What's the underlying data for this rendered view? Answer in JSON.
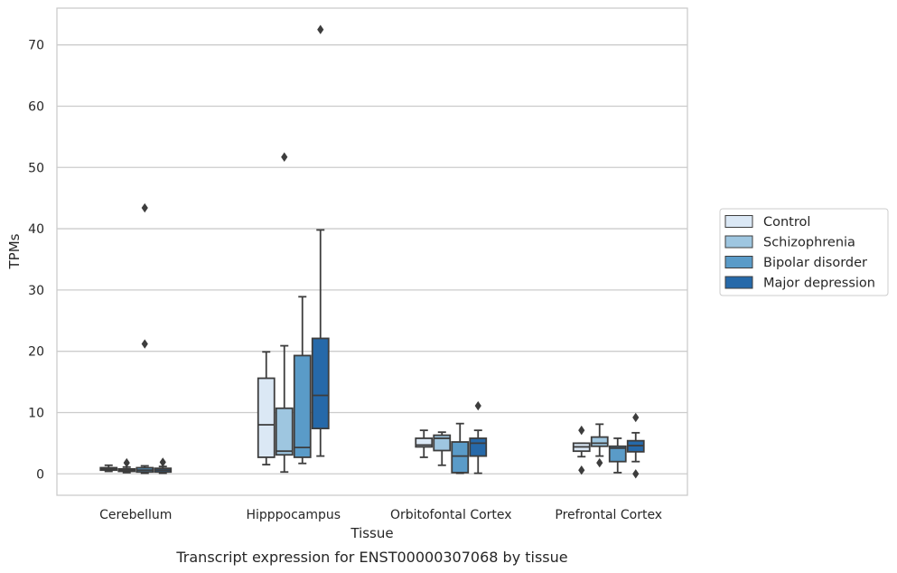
{
  "chart_data": {
    "type": "box",
    "title": "",
    "caption": "Transcript expression for ENST00000307068 by tissue",
    "xlabel": "Tissue",
    "ylabel": "TPMs",
    "ylim": [
      -3.5,
      76
    ],
    "yticks": [
      0,
      10,
      20,
      30,
      40,
      50,
      60,
      70
    ],
    "grid": "horizontal",
    "legend_position": "right",
    "categories": [
      "Cerebellum",
      "Hipppocampus",
      "Orbitofontal Cortex",
      "Prefrontal Cortex"
    ],
    "series": [
      {
        "name": "Control",
        "color": "#dbe8f5",
        "boxes": [
          {
            "whislo": 0.4,
            "q1": 0.6,
            "med": 0.8,
            "q3": 1.0,
            "whishi": 1.4,
            "fliers": []
          },
          {
            "whislo": 1.5,
            "q1": 2.7,
            "med": 8.0,
            "q3": 15.6,
            "whishi": 19.9,
            "fliers": []
          },
          {
            "whislo": 2.7,
            "q1": 4.4,
            "med": 4.7,
            "q3": 5.8,
            "whishi": 7.1,
            "fliers": []
          },
          {
            "whislo": 2.8,
            "q1": 3.7,
            "med": 4.4,
            "q3": 5.0,
            "whishi": 5.0,
            "fliers": [
              7.1,
              0.6
            ]
          }
        ]
      },
      {
        "name": "Schizophrenia",
        "color": "#9ec6e0",
        "boxes": [
          {
            "whislo": 0.2,
            "q1": 0.4,
            "med": 0.6,
            "q3": 0.8,
            "whishi": 1.1,
            "fliers": [
              1.8
            ]
          },
          {
            "whislo": 0.3,
            "q1": 3.1,
            "med": 3.7,
            "q3": 10.7,
            "whishi": 20.9,
            "fliers": [
              51.7
            ]
          },
          {
            "whislo": 1.4,
            "q1": 3.8,
            "med": 5.8,
            "q3": 6.3,
            "whishi": 6.8,
            "fliers": []
          },
          {
            "whislo": 2.9,
            "q1": 4.5,
            "med": 5.0,
            "q3": 6.0,
            "whishi": 8.1,
            "fliers": [
              1.8
            ]
          }
        ]
      },
      {
        "name": "Bipolar disorder",
        "color": "#5a9bc8",
        "boxes": [
          {
            "whislo": 0.1,
            "q1": 0.3,
            "med": 0.6,
            "q3": 1.0,
            "whishi": 1.3,
            "fliers": [
              43.4,
              21.2
            ]
          },
          {
            "whislo": 1.7,
            "q1": 2.7,
            "med": 4.3,
            "q3": 19.3,
            "whishi": 28.9,
            "fliers": []
          },
          {
            "whislo": 0.1,
            "q1": 0.2,
            "med": 2.9,
            "q3": 5.2,
            "whishi": 8.2,
            "fliers": []
          },
          {
            "whislo": 0.2,
            "q1": 2.0,
            "med": 4.2,
            "q3": 4.5,
            "whishi": 5.8,
            "fliers": []
          }
        ]
      },
      {
        "name": "Major depression",
        "color": "#2669a9",
        "boxes": [
          {
            "whislo": 0.1,
            "q1": 0.3,
            "med": 0.6,
            "q3": 0.9,
            "whishi": 1.2,
            "fliers": [
              1.9
            ]
          },
          {
            "whislo": 2.9,
            "q1": 7.4,
            "med": 12.8,
            "q3": 22.1,
            "whishi": 39.8,
            "fliers": [
              72.5
            ]
          },
          {
            "whislo": 0.1,
            "q1": 2.9,
            "med": 5.0,
            "q3": 5.8,
            "whishi": 7.1,
            "fliers": [
              11.1
            ]
          },
          {
            "whislo": 2.0,
            "q1": 3.6,
            "med": 4.6,
            "q3": 5.4,
            "whishi": 6.7,
            "fliers": [
              9.2,
              0.0
            ]
          }
        ]
      }
    ]
  }
}
